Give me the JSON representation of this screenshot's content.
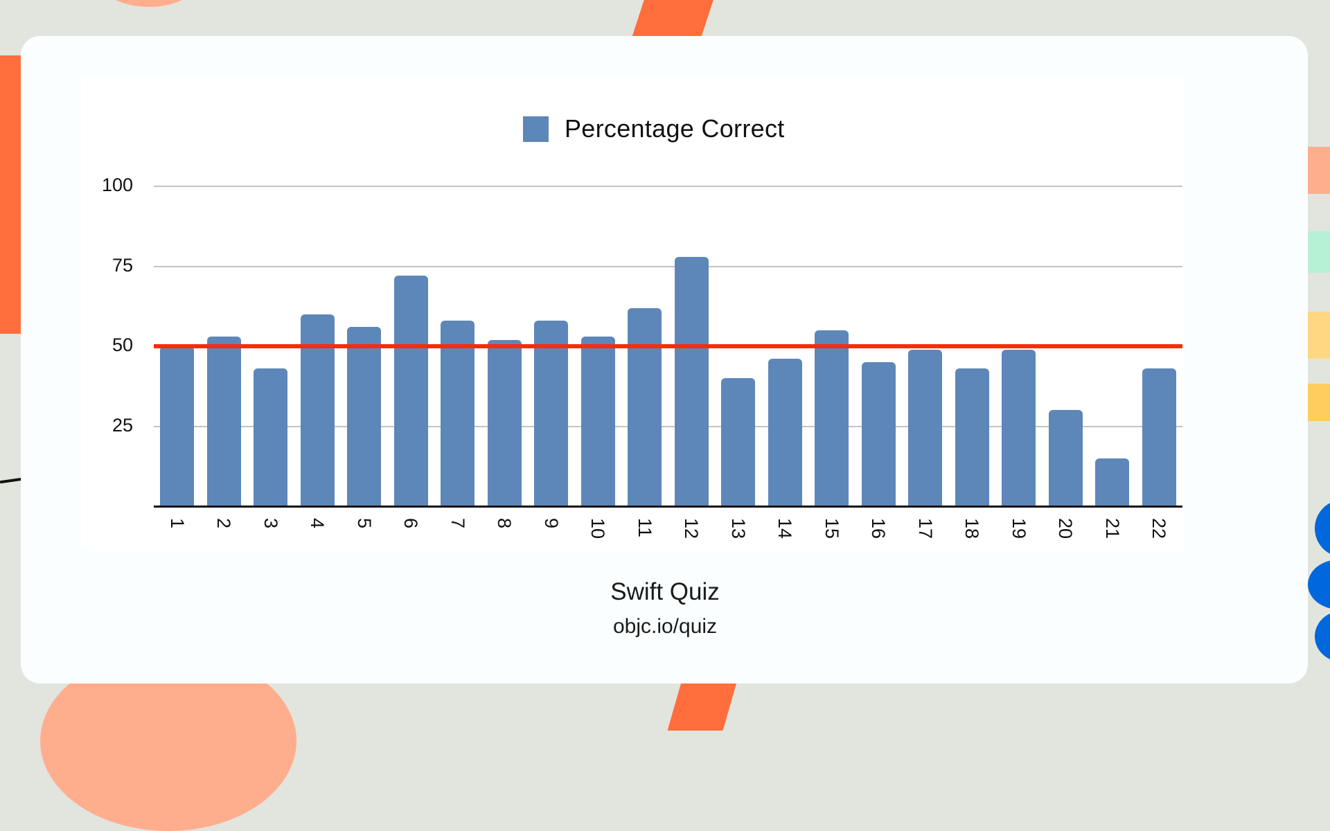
{
  "colors": {
    "bar": "#5d87b8",
    "reference_line": "#fe2a0c",
    "background": "#e2e4de",
    "card": "#fbfefe"
  },
  "legend": {
    "label": "Percentage Correct"
  },
  "footer": {
    "title": "Swift Quiz",
    "subtitle": "objc.io/quiz"
  },
  "chart_data": {
    "type": "bar",
    "title": "",
    "legend": [
      "Percentage Correct"
    ],
    "legend_position": "top",
    "categories": [
      "1",
      "2",
      "3",
      "4",
      "5",
      "6",
      "7",
      "8",
      "9",
      "10",
      "11",
      "12",
      "13",
      "14",
      "15",
      "16",
      "17",
      "18",
      "19",
      "20",
      "21",
      "22"
    ],
    "series": [
      {
        "name": "Percentage Correct",
        "values": [
          50,
          53,
          43,
          60,
          56,
          72,
          58,
          52,
          58,
          53,
          62,
          78,
          40,
          46,
          55,
          45,
          49,
          43,
          49,
          30,
          15,
          43
        ]
      }
    ],
    "reference_line": {
      "value": 50,
      "color": "#fe2a0c"
    },
    "xlabel": "",
    "ylabel": "",
    "yticks": [
      25,
      50,
      75,
      100
    ],
    "ylim": [
      0,
      100
    ],
    "grid": true,
    "x_tick_rotation": 90,
    "caption": [
      "Swift Quiz",
      "objc.io/quiz"
    ]
  }
}
